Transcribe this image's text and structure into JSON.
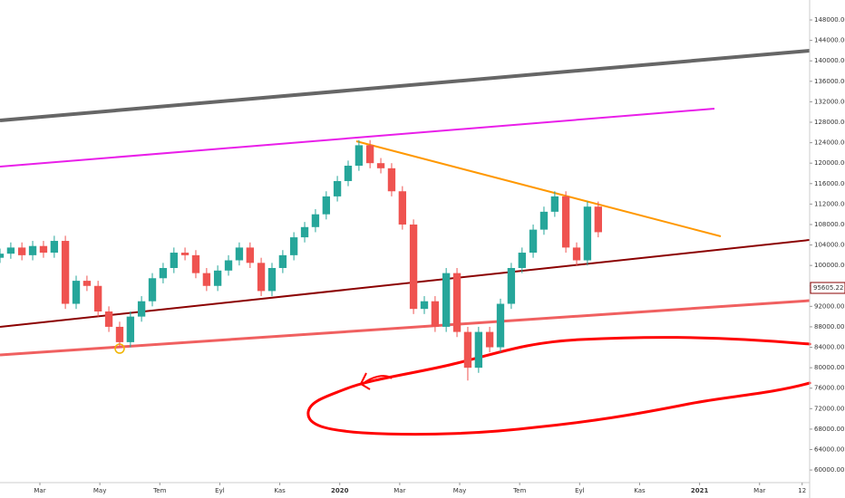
{
  "chart_data": {
    "type": "candlestick",
    "up_color": "#26a69a",
    "down_color": "#ef5350",
    "x": [
      -1.33,
      -0.97,
      -0.6,
      -0.24,
      0.12,
      0.48,
      0.85,
      1.21,
      1.57,
      1.94,
      2.3,
      2.66,
      3.02,
      3.39,
      3.75,
      4.11,
      4.47,
      4.84,
      5.2,
      5.56,
      5.93,
      6.29,
      6.65,
      7.01,
      7.38,
      7.74,
      8.1,
      8.47,
      8.83,
      9.19,
      9.55,
      9.92,
      10.28,
      10.64,
      11.01,
      11.37,
      11.73,
      12.09,
      12.46,
      12.82,
      13.18,
      13.55,
      13.91,
      14.27,
      14.63,
      15.0,
      15.36,
      15.72,
      16.08,
      16.45,
      16.81,
      17.17,
      17.54,
      17.9,
      18.26,
      18.62
    ],
    "open": [
      101500,
      102300,
      103500,
      102000,
      103800,
      102500,
      104800,
      92500,
      97000,
      96000,
      91000,
      88000,
      85000,
      90000,
      93000,
      97500,
      99500,
      102500,
      102000,
      98500,
      96000,
      99000,
      101000,
      103500,
      100500,
      95000,
      99500,
      102000,
      105500,
      107500,
      110000,
      113500,
      116500,
      119500,
      123500,
      120000,
      119000,
      114500,
      108000,
      91500,
      93000,
      88000,
      98500,
      87000,
      80000,
      87000,
      84000,
      92500,
      99500,
      102500,
      107000,
      110500,
      113500,
      103500,
      101000,
      111500
    ],
    "high": [
      103300,
      104500,
      104500,
      104800,
      104800,
      105800,
      105800,
      98000,
      98000,
      97000,
      92000,
      89000,
      91000,
      94000,
      98500,
      100500,
      103500,
      103500,
      103000,
      99500,
      100000,
      102000,
      104500,
      104500,
      101500,
      100500,
      103000,
      106500,
      108500,
      111000,
      114500,
      117500,
      120500,
      124500,
      124500,
      121000,
      120000,
      115500,
      109000,
      94000,
      94000,
      99500,
      99500,
      88000,
      88000,
      88000,
      93500,
      100500,
      103500,
      108000,
      111500,
      114500,
      114500,
      104500,
      112500,
      112500
    ],
    "low": [
      100500,
      101300,
      101000,
      101000,
      101500,
      101500,
      91500,
      91500,
      95000,
      90000,
      87000,
      84000,
      84000,
      89000,
      92000,
      96500,
      98500,
      101000,
      97500,
      95000,
      95000,
      98000,
      100000,
      99500,
      94000,
      94000,
      98500,
      101000,
      104500,
      106500,
      109000,
      112500,
      115500,
      118500,
      119000,
      118000,
      113500,
      107000,
      90500,
      90500,
      87000,
      87000,
      86000,
      77500,
      79000,
      83000,
      83000,
      91500,
      98500,
      101500,
      106000,
      109500,
      102500,
      100000,
      100000,
      105500
    ],
    "close": [
      102300,
      103500,
      102000,
      103800,
      102500,
      104800,
      92500,
      97000,
      96000,
      91000,
      88000,
      85000,
      90000,
      93000,
      97500,
      99500,
      102500,
      102000,
      98500,
      96000,
      99000,
      101000,
      103500,
      100500,
      95000,
      99500,
      102000,
      105500,
      107500,
      110000,
      113500,
      116500,
      119500,
      123500,
      120000,
      119000,
      114500,
      108000,
      91500,
      93000,
      88000,
      98500,
      87000,
      80000,
      87000,
      84000,
      92500,
      99500,
      102500,
      107000,
      110500,
      113500,
      103500,
      101000,
      111500,
      106500
    ],
    "xlim": [
      -1.33,
      25.67
    ],
    "ylim": [
      56300,
      151900
    ],
    "xticks": [
      {
        "value": 0,
        "label": "Mar"
      },
      {
        "value": 2,
        "label": "May"
      },
      {
        "value": 4,
        "label": "Tem"
      },
      {
        "value": 6,
        "label": "Eyl"
      },
      {
        "value": 8,
        "label": "Kas"
      },
      {
        "value": 10,
        "label": "2020"
      },
      {
        "value": 12,
        "label": "Mar"
      },
      {
        "value": 14,
        "label": "May"
      },
      {
        "value": 16,
        "label": "Tem"
      },
      {
        "value": 18,
        "label": "Eyl"
      },
      {
        "value": 20,
        "label": "Kas"
      },
      {
        "value": 22,
        "label": "2021"
      },
      {
        "value": 24,
        "label": "Mar"
      },
      {
        "value": 25.42,
        "label": "12"
      }
    ],
    "yticks": [
      {
        "value": 60000,
        "label": "60000.00"
      },
      {
        "value": 64000,
        "label": "64000.00"
      },
      {
        "value": 68000,
        "label": "68000.00"
      },
      {
        "value": 72000,
        "label": "72000.00"
      },
      {
        "value": 76000,
        "label": "76000.00"
      },
      {
        "value": 80000,
        "label": "80000.00"
      },
      {
        "value": 84000,
        "label": "84000.00"
      },
      {
        "value": 88000,
        "label": "88000.00"
      },
      {
        "value": 92000,
        "label": "92000.00"
      },
      {
        "value": 96000,
        "label": "96000.00"
      },
      {
        "value": 100000,
        "label": "100000.00"
      },
      {
        "value": 104000,
        "label": "104000.00"
      },
      {
        "value": 108000,
        "label": "108000.00"
      },
      {
        "value": 112000,
        "label": "112000.00"
      },
      {
        "value": 116000,
        "label": "116000.00"
      },
      {
        "value": 120000,
        "label": "120000.00"
      },
      {
        "value": 124000,
        "label": "124000.00"
      },
      {
        "value": 128000,
        "label": "128000.00"
      },
      {
        "value": 132000,
        "label": "132000.00"
      },
      {
        "value": 136000,
        "label": "136000.00"
      },
      {
        "value": 140000,
        "label": "140000.00"
      },
      {
        "value": 144000,
        "label": "144000.00"
      },
      {
        "value": 148000,
        "label": "148000.00"
      }
    ],
    "last_price": {
      "value": 95605.22,
      "label": "95605.22"
    }
  }
}
